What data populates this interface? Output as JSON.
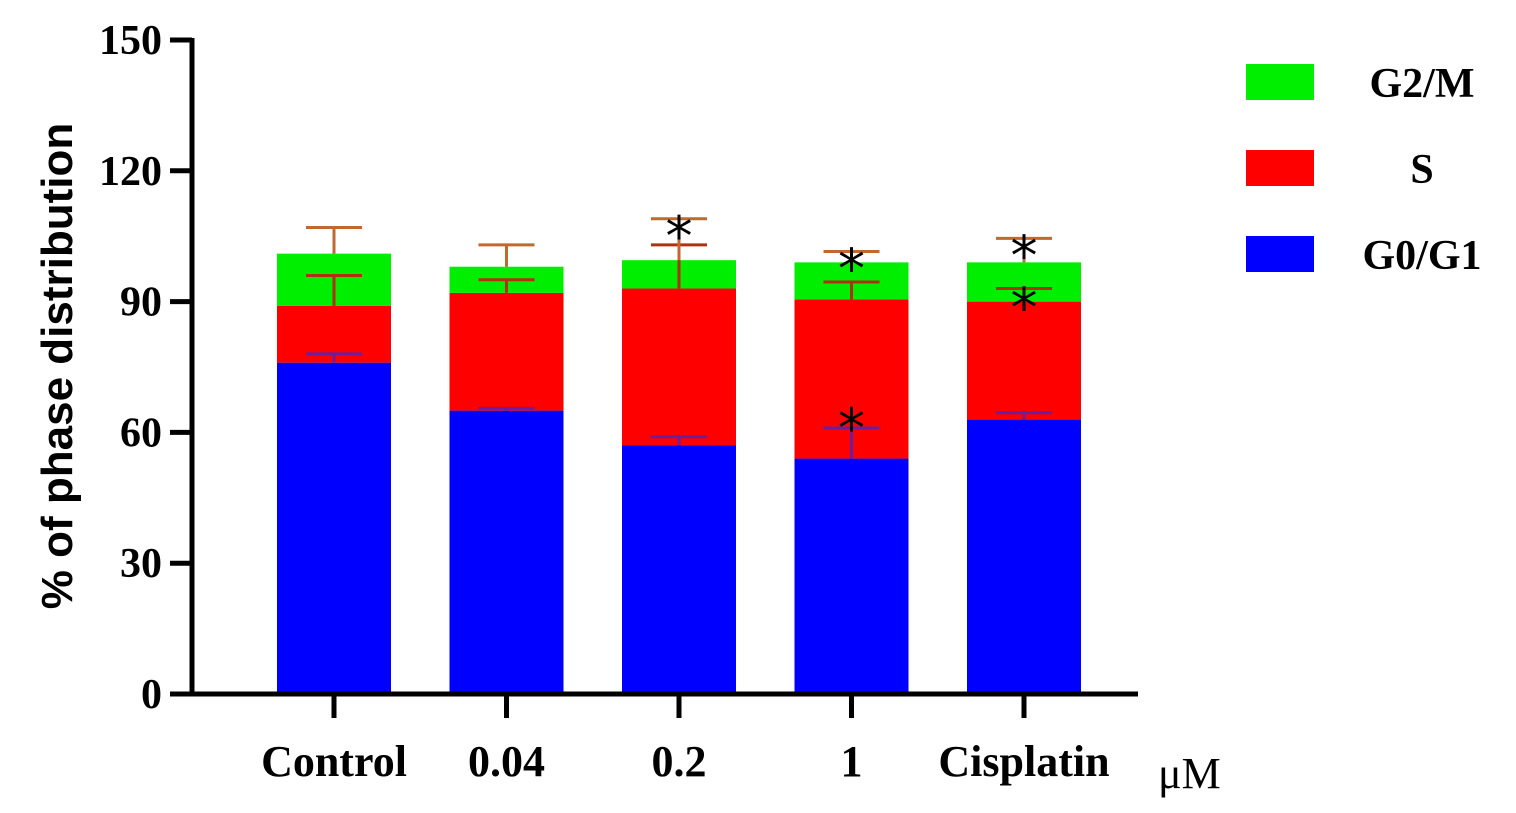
{
  "chart_data": {
    "type": "bar",
    "stacked": true,
    "title": "",
    "xlabel": "",
    "x_unit": "μM",
    "ylabel": "% of phase distribution",
    "ylim": [
      0,
      150
    ],
    "yticks": [
      0,
      30,
      60,
      90,
      120,
      150
    ],
    "categories": [
      "Control",
      "0.04",
      "0.2",
      "1",
      "Cisplatin"
    ],
    "series": [
      {
        "name": "G0/G1",
        "color": "#0000ff",
        "error_color": "#6a1fa0",
        "values": [
          76,
          65,
          57,
          54,
          63
        ],
        "errors": [
          2,
          0.5,
          2,
          7,
          1.5
        ]
      },
      {
        "name": "S",
        "color": "#ff0000",
        "error_color": "#b03010",
        "values": [
          13,
          27,
          36,
          36.5,
          27
        ],
        "errors": [
          7,
          3,
          10,
          4,
          3
        ]
      },
      {
        "name": "G2/M",
        "color": "#00ee00",
        "error_color": "#c06830",
        "values": [
          12,
          6,
          6.5,
          8.5,
          9
        ],
        "errors": [
          6,
          5,
          9.5,
          2.5,
          5.5
        ]
      }
    ],
    "legend_order": [
      "G2/M",
      "S",
      "G0/G1"
    ],
    "legend_position": "top-right",
    "annotations": [
      {
        "text": "*",
        "category": "0.2",
        "series": "G2/M"
      },
      {
        "text": "*",
        "category": "1",
        "series": "G2/M"
      },
      {
        "text": "*",
        "category": "1",
        "series": "S"
      },
      {
        "text": "*",
        "category": "Cisplatin",
        "series": "G2/M"
      },
      {
        "text": "*",
        "category": "Cisplatin",
        "series": "S"
      }
    ]
  }
}
